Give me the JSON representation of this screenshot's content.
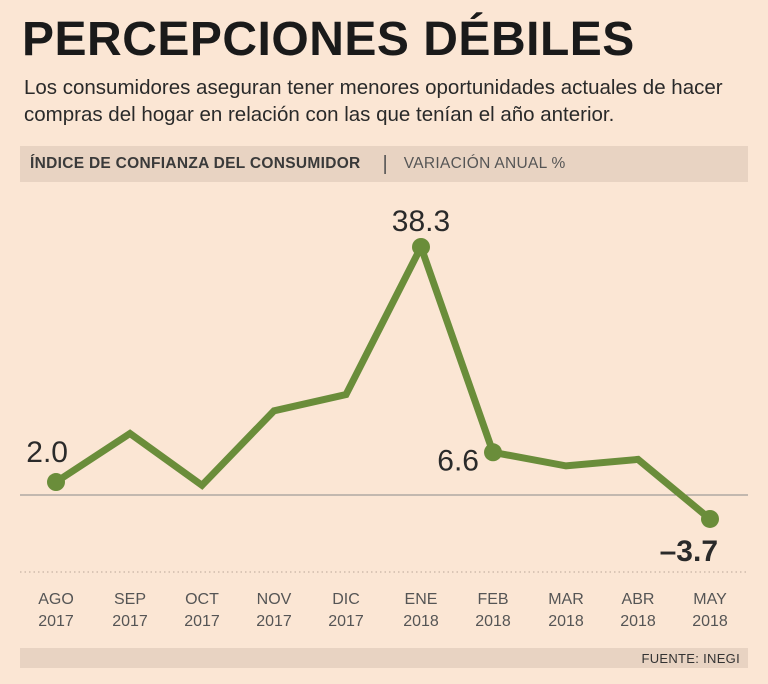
{
  "title": "PERCEPCIONES DÉBILES",
  "subtitle": "Los consumidores aseguran tener menores oportunidades actuales de hacer compras del hogar en relación con las que tenían el año anterior.",
  "header": {
    "main": "ÍNDICE DE CONFIANZA DEL CONSUMIDOR",
    "separator": "|",
    "sub": "VARIACIÓN ANUAL %"
  },
  "source": "FUENTE: INEGI",
  "colors": {
    "line": "#6a8d3a",
    "background": "#fbe6d4",
    "band": "#e8d3c2",
    "zero_line": "#8a8a8a"
  },
  "chart_data": {
    "type": "line",
    "title": "ÍNDICE DE CONFIANZA DEL CONSUMIDOR",
    "ylabel": "VARIACIÓN ANUAL %",
    "xlabel": "",
    "categories": [
      {
        "month": "AGO",
        "year": "2017"
      },
      {
        "month": "SEP",
        "year": "2017"
      },
      {
        "month": "OCT",
        "year": "2017"
      },
      {
        "month": "NOV",
        "year": "2017"
      },
      {
        "month": "DIC",
        "year": "2017"
      },
      {
        "month": "ENE",
        "year": "2018"
      },
      {
        "month": "FEB",
        "year": "2018"
      },
      {
        "month": "MAR",
        "year": "2018"
      },
      {
        "month": "ABR",
        "year": "2018"
      },
      {
        "month": "MAY",
        "year": "2018"
      }
    ],
    "values": [
      2.0,
      9.5,
      1.5,
      13.0,
      15.5,
      38.3,
      6.6,
      4.5,
      5.5,
      -3.7
    ],
    "labeled_points": [
      {
        "index": 0,
        "label": "2.0"
      },
      {
        "index": 5,
        "label": "38.3"
      },
      {
        "index": 6,
        "label": "6.6"
      },
      {
        "index": 9,
        "label": "–3.7"
      }
    ],
    "ylim": [
      -6,
      42
    ],
    "zero_line": true,
    "grid": false,
    "legend": "none"
  }
}
